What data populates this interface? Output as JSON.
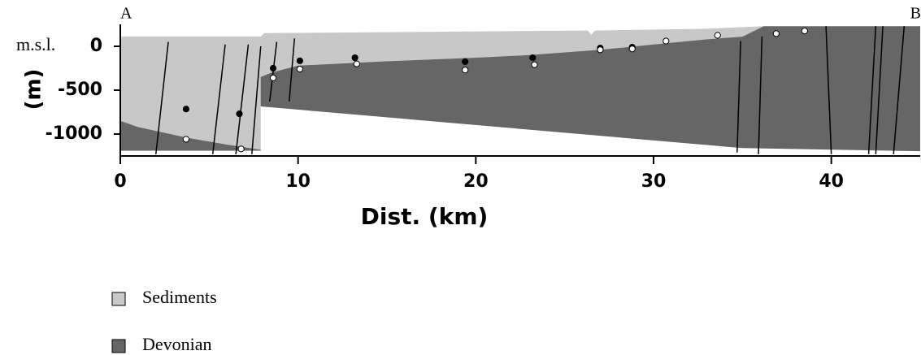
{
  "chart_data": {
    "type": "cross-section",
    "y_axis_label": "(m)",
    "x_axis_label": "Dist. (km)",
    "annotations": {
      "left_end": "A",
      "right_end": "B",
      "zero_label": "m.s.l."
    },
    "xlim": [
      0,
      45
    ],
    "xticks": [
      0,
      10,
      20,
      30,
      40
    ],
    "ylim": [
      -1250,
      250
    ],
    "yticks": [
      0,
      -500,
      -1000
    ],
    "series": [
      {
        "name": "Sediments",
        "color": "#c8c8c8",
        "x": [
          0,
          7.9,
          8.1,
          26.3,
          26.5,
          26.7,
          33,
          36.2,
          35,
          33,
          30,
          27,
          23,
          20,
          15,
          10,
          8.5,
          7.9,
          7.9,
          6,
          3.7,
          1,
          0
        ],
        "y": [
          110,
          110,
          150,
          180,
          130,
          180,
          200,
          230,
          110,
          80,
          20,
          -40,
          -100,
          -130,
          -170,
          -220,
          -300,
          -350,
          -1180,
          -1120,
          -1040,
          -920,
          -850
        ]
      },
      {
        "name": "Devonian",
        "color": "#666666",
        "x": [
          0,
          1,
          3.7,
          6,
          7.9,
          7.9,
          0,
          null,
          7.9,
          8.5,
          10,
          15,
          20,
          23,
          27,
          30,
          33,
          35,
          36.2,
          45,
          45,
          35,
          7.9
        ],
        "y": [
          -850,
          -920,
          -1040,
          -1120,
          -1180,
          -1190,
          -1190,
          null,
          -350,
          -300,
          -220,
          -170,
          -130,
          -100,
          -40,
          20,
          80,
          110,
          230,
          230,
          -1195,
          -1160,
          -685
        ]
      }
    ],
    "markers": [
      {
        "fill": "#000000",
        "x": [
          3.7,
          6.7,
          8.6,
          10.1,
          13.2,
          19.4,
          23.2,
          27,
          28.8
        ],
        "y": [
          -715,
          -770,
          -250,
          -165,
          -130,
          -175,
          -130,
          -20,
          -10
        ]
      },
      {
        "fill": "#ffffff",
        "x": [
          3.7,
          6.8,
          8.6,
          10.1,
          13.3,
          19.4,
          23.3,
          27,
          28.8,
          30.7,
          33.6,
          36.9,
          38.5
        ],
        "y": [
          -1060,
          -1170,
          -360,
          -260,
          -200,
          -270,
          -210,
          -40,
          -30,
          60,
          125,
          145,
          175
        ]
      }
    ],
    "faults": [
      {
        "x": [
          2.7,
          2.0
        ],
        "y": [
          50,
          -1230
        ]
      },
      {
        "x": [
          5.9,
          5.2
        ],
        "y": [
          20,
          -1230
        ]
      },
      {
        "x": [
          7.2,
          6.5
        ],
        "y": [
          20,
          -1230
        ]
      },
      {
        "x": [
          7.9,
          7.4
        ],
        "y": [
          0,
          -1230
        ]
      },
      {
        "x": [
          8.8,
          8.4
        ],
        "y": [
          50,
          -630
        ]
      },
      {
        "x": [
          9.8,
          9.5
        ],
        "y": [
          90,
          -630
        ]
      },
      {
        "x": [
          34.9,
          34.7
        ],
        "y": [
          60,
          -1210
        ]
      },
      {
        "x": [
          36.1,
          35.9
        ],
        "y": [
          110,
          -1230
        ]
      },
      {
        "x": [
          39.7,
          40.0
        ],
        "y": [
          230,
          -1230
        ]
      },
      {
        "x": [
          42.5,
          42.1
        ],
        "y": [
          230,
          -1230
        ]
      },
      {
        "x": [
          42.9,
          42.5
        ],
        "y": [
          230,
          -1230
        ]
      },
      {
        "x": [
          44.1,
          43.5
        ],
        "y": [
          230,
          -1230
        ]
      }
    ]
  }
}
